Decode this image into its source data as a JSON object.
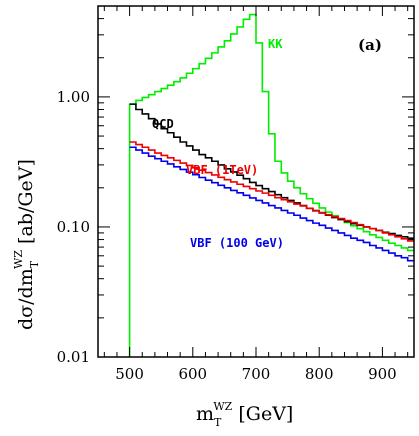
{
  "chart_data": {
    "type": "line",
    "panel_label": "(a)",
    "xlabel": {
      "main": "m",
      "sub": "T",
      "sup": "WZ",
      "unit": " [GeV]"
    },
    "ylabel": {
      "main": "dσ/dm",
      "sub": "T",
      "sup": "WZ",
      "unit": " [ab/GeV]"
    },
    "xlim": [
      450,
      950
    ],
    "ylim": [
      0.01,
      5
    ],
    "yscale": "log",
    "xticks": [
      500,
      600,
      700,
      800,
      900
    ],
    "yticks": [
      {
        "value": 0.01,
        "label": "0.01"
      },
      {
        "value": 0.1,
        "label": "0.10"
      },
      {
        "value": 1.0,
        "label": "1.00"
      }
    ],
    "bin_width": 10,
    "series": [
      {
        "name": "KK",
        "color": "#00ee00",
        "bin_edges_start": 500,
        "values": [
          0.88,
          0.94,
          0.99,
          1.04,
          1.1,
          1.16,
          1.23,
          1.31,
          1.4,
          1.52,
          1.65,
          1.8,
          1.98,
          2.18,
          2.42,
          2.7,
          3.05,
          3.45,
          3.95,
          4.3,
          2.6,
          1.1,
          0.52,
          0.32,
          0.26,
          0.225,
          0.2,
          0.18,
          0.165,
          0.152,
          0.14,
          0.13,
          0.122,
          0.115,
          0.108,
          0.102,
          0.097,
          0.092,
          0.087,
          0.083,
          0.079,
          0.075,
          0.072,
          0.069,
          0.066
        ]
      },
      {
        "name": "QCD",
        "color": "#000000",
        "bin_edges_start": 500,
        "values": [
          0.88,
          0.8,
          0.74,
          0.68,
          0.62,
          0.57,
          0.53,
          0.49,
          0.45,
          0.42,
          0.39,
          0.36,
          0.34,
          0.32,
          0.3,
          0.28,
          0.265,
          0.25,
          0.235,
          0.22,
          0.208,
          0.197,
          0.187,
          0.177,
          0.168,
          0.16,
          0.153,
          0.146,
          0.139,
          0.133,
          0.128,
          0.123,
          0.118,
          0.114,
          0.11,
          0.106,
          0.103,
          0.1,
          0.097,
          0.094,
          0.091,
          0.089,
          0.086,
          0.084,
          0.082
        ]
      },
      {
        "name": "VBF (1TeV)",
        "color": "#ee0000",
        "bin_edges_start": 500,
        "values": [
          0.45,
          0.43,
          0.41,
          0.39,
          0.37,
          0.355,
          0.34,
          0.325,
          0.31,
          0.297,
          0.285,
          0.273,
          0.262,
          0.251,
          0.241,
          0.231,
          0.222,
          0.213,
          0.205,
          0.197,
          0.189,
          0.182,
          0.175,
          0.168,
          0.162,
          0.156,
          0.15,
          0.145,
          0.139,
          0.134,
          0.129,
          0.124,
          0.12,
          0.116,
          0.112,
          0.108,
          0.104,
          0.1,
          0.097,
          0.094,
          0.09,
          0.087,
          0.084,
          0.081,
          0.078
        ]
      },
      {
        "name": "VBF (100 GeV)",
        "color": "#0000ee",
        "bin_edges_start": 500,
        "values": [
          0.41,
          0.39,
          0.37,
          0.35,
          0.335,
          0.32,
          0.305,
          0.29,
          0.277,
          0.264,
          0.252,
          0.24,
          0.229,
          0.219,
          0.209,
          0.2,
          0.191,
          0.183,
          0.175,
          0.167,
          0.16,
          0.153,
          0.146,
          0.14,
          0.134,
          0.128,
          0.123,
          0.117,
          0.112,
          0.107,
          0.103,
          0.098,
          0.094,
          0.09,
          0.086,
          0.082,
          0.079,
          0.076,
          0.072,
          0.069,
          0.066,
          0.063,
          0.06,
          0.058,
          0.055
        ]
      }
    ],
    "series_labels": [
      {
        "text": "KK",
        "color": "#00ee00"
      },
      {
        "text": "QCD",
        "color": "#000000"
      },
      {
        "text": "VBF (1TeV)",
        "color": "#ee0000"
      },
      {
        "text": "VBF (100 GeV)",
        "color": "#0000ee"
      }
    ]
  }
}
